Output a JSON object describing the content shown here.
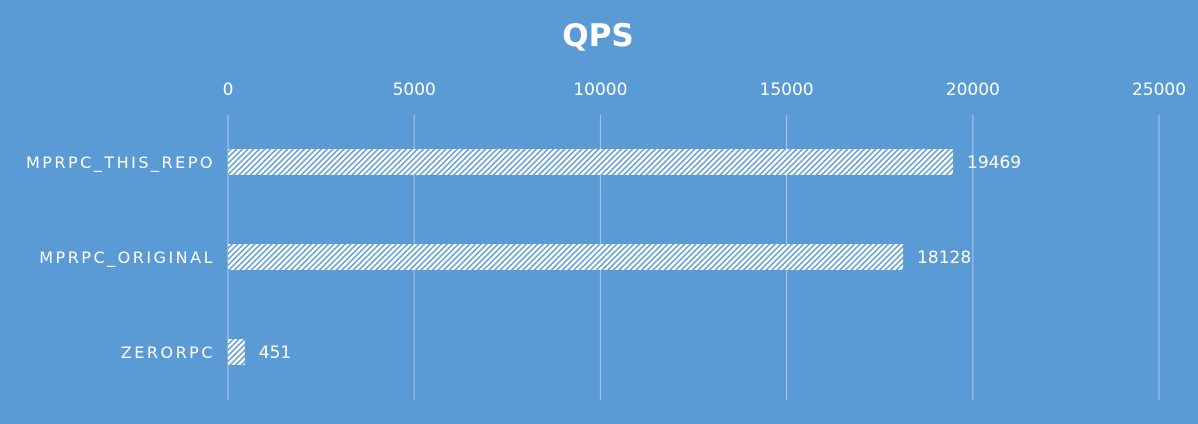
{
  "chart_data": {
    "type": "bar",
    "orientation": "horizontal",
    "title": "QPS",
    "xlabel": "",
    "ylabel": "",
    "categories": [
      "MPRPC_THIS_REPO",
      "MPRPC_ORIGINAL",
      "ZERORPC"
    ],
    "values": [
      19469,
      18128,
      451
    ],
    "xlim": [
      0,
      25000
    ],
    "ticks": [
      "0",
      "5000",
      "10000",
      "15000",
      "20000",
      "25000"
    ],
    "tick_values": [
      0,
      5000,
      10000,
      15000,
      20000,
      25000
    ],
    "axis_position": "top",
    "grid": true,
    "legend": "none",
    "colors": {
      "background": "#5b9bd5",
      "bar_fill": "#ffffff",
      "bar_pattern": "#5b9bd5",
      "text": "#ffffff",
      "grid": "#a9c8e9"
    }
  }
}
